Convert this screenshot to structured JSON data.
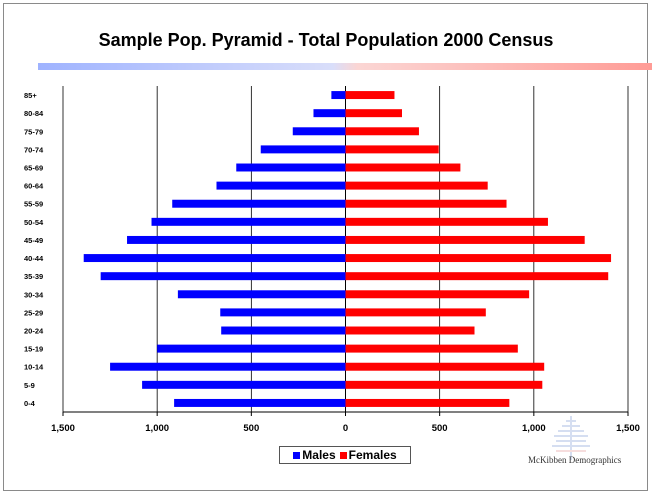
{
  "chart_data": {
    "type": "bar",
    "orientation": "horizontal-pyramid",
    "title": "Sample Pop. Pyramid -  Total Population 2000 Census",
    "categories": [
      "0-4",
      "5-9",
      "10-14",
      "15-19",
      "20-24",
      "25-29",
      "30-34",
      "35-39",
      "40-44",
      "45-49",
      "50-54",
      "55-59",
      "60-64",
      "65-69",
      "70-74",
      "75-79",
      "80-84",
      "85+"
    ],
    "category_labels": [
      "0-4",
      "5-9",
      "10-14",
      "15-19",
      "20-24",
      "25-29",
      "30-34",
      "35-39",
      "40-44",
      "45-49",
      "50-54",
      "55-59",
      "60-64",
      "65-69",
      "70-74",
      "75-79",
      "80-84",
      "85+"
    ],
    "series": [
      {
        "name": "Males",
        "color": "#0000ff",
        "values": [
          910,
          1080,
          1250,
          1000,
          660,
          665,
          890,
          1300,
          1390,
          1160,
          1030,
          920,
          685,
          580,
          450,
          280,
          170,
          75
        ]
      },
      {
        "name": "Females",
        "color": "#ff0000",
        "values": [
          870,
          1045,
          1055,
          915,
          685,
          745,
          975,
          1395,
          1410,
          1270,
          1075,
          855,
          755,
          610,
          495,
          390,
          300,
          260
        ]
      }
    ],
    "xlim": [
      -1500,
      1500
    ],
    "x_ticks": [
      -1500,
      -1000,
      -500,
      0,
      500,
      1000,
      1500
    ],
    "x_tick_labels": [
      "1,500",
      "1,000",
      "500",
      "0",
      "500",
      "1,000",
      "1,500"
    ],
    "grid": "vertical",
    "legend": {
      "position": "bottom-center"
    }
  },
  "logo": {
    "text": "McKibben Demographics"
  }
}
